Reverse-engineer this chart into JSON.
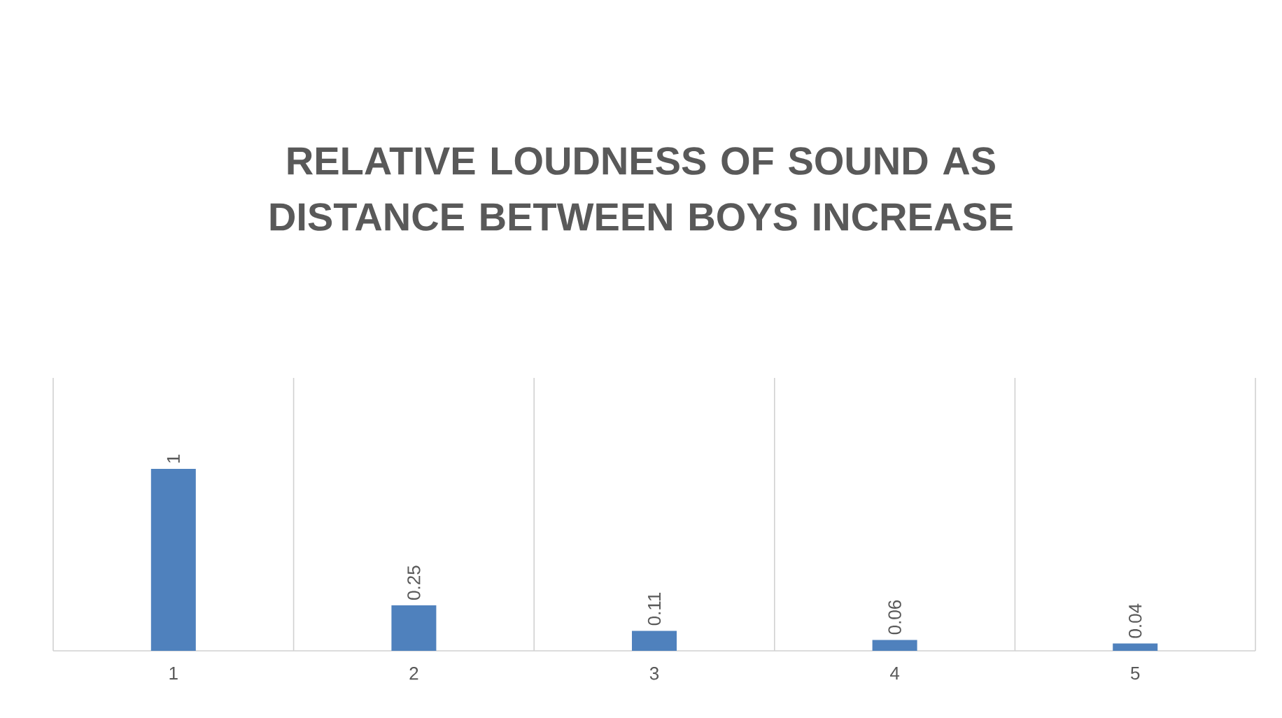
{
  "chart_data": {
    "type": "bar",
    "title": "RELATIVE LOUDNESS OF SOUND AS DISTANCE BETWEEN BOYS INCREASE",
    "categories": [
      "1",
      "2",
      "3",
      "4",
      "5"
    ],
    "values": [
      1,
      0.25,
      0.11,
      0.06,
      0.04
    ],
    "color": "#4f81bd",
    "data_labels": true,
    "grid": "x",
    "ylim": [
      0,
      1.5
    ],
    "tick_labels": "x"
  }
}
